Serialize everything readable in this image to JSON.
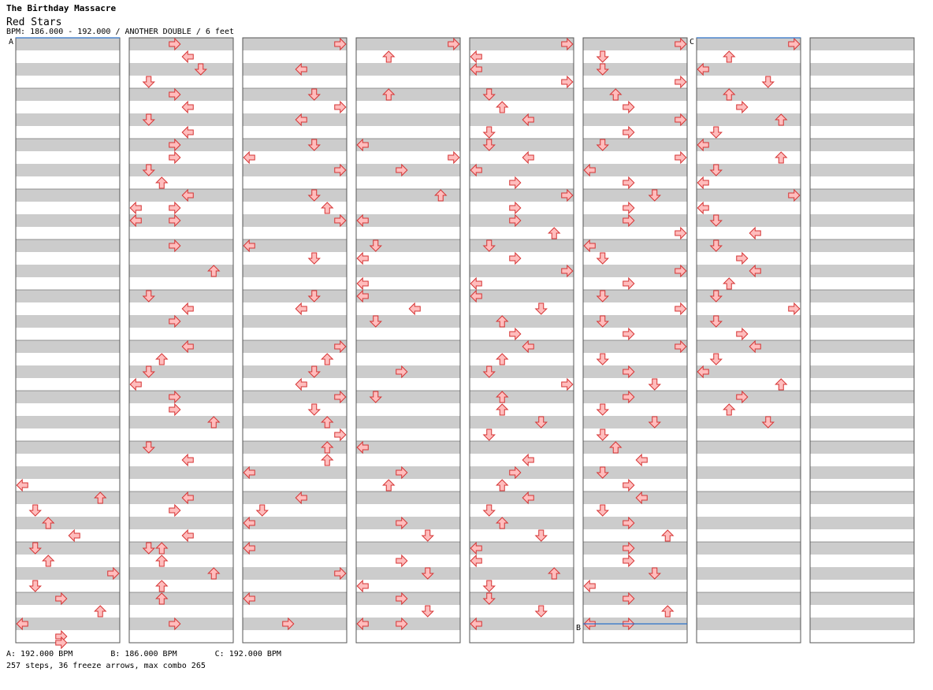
{
  "header": {
    "artist": "The Birthday Massacre",
    "title": "Red Stars",
    "bpm_line": "BPM: 186.000 - 192.000 / ANOTHER DOUBLE / 6 feet"
  },
  "bpm_markers": [
    {
      "label": "A",
      "bpm": "192.000 BPM",
      "column": 1,
      "beat": 0
    },
    {
      "label": "B",
      "bpm": "186.000 BPM",
      "column": 6,
      "beat": 46.5
    },
    {
      "label": "C",
      "bpm": "192.000 BPM",
      "column": 7,
      "beat": 0
    }
  ],
  "legend": [
    "A: 192.000 BPM",
    "B: 186.000 BPM",
    "C: 192.000 BPM"
  ],
  "stats": "257 steps, 36 freeze arrows, max combo 265",
  "colors": {
    "note": "#ffbdbd",
    "note_stroke": "#d63333",
    "blue": "#8fc8ff",
    "blue_stroke": "#2d72c8",
    "freeze": "#c9fcc9",
    "freeze_stroke": "#2e9a2e",
    "stripe": "#cccccc"
  },
  "chart_data": {
    "type": "table",
    "columns": 8,
    "beats_per_column": 48,
    "lanes": [
      "L1",
      "D1",
      "U1",
      "R1",
      "L2",
      "D2",
      "U2",
      "R2"
    ],
    "notes": [
      [
        1,
        35,
        "L"
      ],
      [
        1,
        36,
        "U"
      ],
      [
        1,
        37,
        "D"
      ],
      [
        1,
        38,
        "U"
      ],
      [
        1,
        39,
        "L"
      ],
      [
        1,
        40,
        "D"
      ],
      [
        1,
        41,
        "U"
      ],
      [
        1,
        42,
        "R"
      ],
      [
        1,
        43,
        "D"
      ],
      [
        1,
        44,
        "R"
      ],
      [
        1,
        45,
        "U"
      ],
      [
        1,
        46,
        "L"
      ],
      [
        1,
        47,
        "R"
      ],
      [
        1,
        47.5,
        "R"
      ],
      [
        1,
        48,
        "L"
      ],
      [
        2,
        0,
        "R1"
      ],
      [
        2,
        1,
        "L2"
      ],
      [
        2,
        2,
        "D2"
      ],
      [
        2,
        3,
        "D1"
      ],
      [
        2,
        4,
        "R1"
      ],
      [
        2,
        5,
        "L2"
      ],
      [
        2,
        6,
        "D1"
      ],
      [
        2,
        7,
        "L2"
      ],
      [
        2,
        8,
        "R"
      ],
      [
        2,
        9,
        "R1"
      ],
      [
        2,
        10,
        "D"
      ],
      [
        2,
        11,
        "U"
      ],
      [
        2,
        12,
        "L"
      ],
      [
        2,
        13,
        "L1"
      ],
      [
        2,
        14,
        "L"
      ],
      [
        2,
        13,
        "R1"
      ],
      [
        2,
        14,
        "R1"
      ],
      [
        2,
        16,
        "R1"
      ],
      [
        2,
        18,
        "U"
      ],
      [
        2,
        20,
        "D"
      ],
      [
        2,
        21,
        "L"
      ],
      [
        2,
        22,
        "R1"
      ],
      [
        2,
        24,
        "L"
      ],
      [
        2,
        25,
        "U"
      ],
      [
        2,
        26,
        "D"
      ],
      [
        2,
        27,
        "L1"
      ],
      [
        2,
        28,
        "R1"
      ],
      [
        2,
        29,
        "R1"
      ],
      [
        2,
        30,
        "U"
      ],
      [
        2,
        32,
        "D"
      ],
      [
        2,
        33,
        "L"
      ],
      [
        2,
        36,
        "L"
      ],
      [
        2,
        37,
        "R1"
      ],
      [
        2,
        39,
        "L"
      ],
      [
        2,
        40,
        "D"
      ],
      [
        2,
        40,
        "U"
      ],
      [
        2,
        41,
        "U"
      ],
      [
        2,
        42,
        "U"
      ],
      [
        2,
        43,
        "U"
      ],
      [
        2,
        44,
        "U"
      ],
      [
        2,
        46,
        "R1"
      ],
      [
        3,
        0,
        "R"
      ],
      [
        3,
        2,
        "L2"
      ],
      [
        3,
        4,
        "D2"
      ],
      [
        3,
        5,
        "R2"
      ],
      [
        3,
        6,
        "L2"
      ],
      [
        3,
        8,
        "D2"
      ],
      [
        3,
        9,
        "L1"
      ],
      [
        3,
        10,
        "R2"
      ],
      [
        3,
        12,
        "D2"
      ],
      [
        3,
        13,
        "U2"
      ],
      [
        3,
        14,
        "R2"
      ],
      [
        3,
        16,
        "L1"
      ],
      [
        3,
        17,
        "D2"
      ],
      [
        3,
        20,
        "D2"
      ],
      [
        3,
        21,
        "L2"
      ],
      [
        3,
        24,
        "R"
      ],
      [
        3,
        25,
        "U2"
      ],
      [
        3,
        26,
        "D2"
      ],
      [
        3,
        27,
        "L2"
      ],
      [
        3,
        28,
        "R2"
      ],
      [
        3,
        29,
        "D2"
      ],
      [
        3,
        30,
        "U2"
      ],
      [
        3,
        31,
        "R2"
      ],
      [
        3,
        32,
        "U2"
      ],
      [
        3,
        33,
        "U2"
      ],
      [
        3,
        34,
        "L"
      ],
      [
        3,
        36,
        "L"
      ],
      [
        3,
        37,
        "D1"
      ],
      [
        3,
        38,
        "L"
      ],
      [
        3,
        40,
        "L"
      ],
      [
        3,
        42,
        "R"
      ],
      [
        3,
        44,
        "L"
      ],
      [
        3,
        46,
        "R"
      ],
      [
        4,
        0,
        "R"
      ],
      [
        4,
        1,
        "U"
      ],
      [
        4,
        4,
        "U"
      ],
      [
        4,
        8,
        "L"
      ],
      [
        4,
        9,
        "R2"
      ],
      [
        4,
        10,
        "R"
      ],
      [
        4,
        12,
        "U"
      ],
      [
        4,
        14,
        "L1"
      ],
      [
        4,
        16,
        "D"
      ],
      [
        4,
        17,
        "L1"
      ],
      [
        4,
        19,
        "L"
      ],
      [
        4,
        20,
        "L"
      ],
      [
        4,
        21,
        "L"
      ],
      [
        4,
        22,
        "D"
      ],
      [
        4,
        26,
        "R"
      ],
      [
        4,
        28,
        "D"
      ],
      [
        4,
        32,
        "L"
      ],
      [
        4,
        34,
        "R1"
      ],
      [
        4,
        35,
        "U1"
      ],
      [
        4,
        38,
        "R"
      ],
      [
        4,
        39,
        "D"
      ],
      [
        4,
        41,
        "R"
      ],
      [
        4,
        42,
        "D"
      ],
      [
        4,
        43,
        "L"
      ],
      [
        4,
        44,
        "R"
      ],
      [
        4,
        45,
        "D"
      ],
      [
        4,
        46,
        "L"
      ],
      [
        4,
        46,
        "R"
      ],
      [
        5,
        0,
        "R"
      ],
      [
        5,
        1,
        "L"
      ],
      [
        5,
        2,
        "L"
      ],
      [
        5,
        3,
        "R"
      ],
      [
        5,
        4,
        "D"
      ],
      [
        5,
        5,
        "U"
      ],
      [
        5,
        6,
        "L"
      ],
      [
        5,
        7,
        "D"
      ],
      [
        5,
        8,
        "D"
      ],
      [
        5,
        9,
        "L"
      ],
      [
        5,
        10,
        "L"
      ],
      [
        5,
        11,
        "R"
      ],
      [
        5,
        12,
        "R"
      ],
      [
        5,
        13,
        "R"
      ],
      [
        5,
        14,
        "R"
      ],
      [
        5,
        15,
        "U"
      ],
      [
        5,
        16,
        "D"
      ],
      [
        5,
        17,
        "R"
      ],
      [
        5,
        18,
        "R"
      ],
      [
        5,
        19,
        "L"
      ],
      [
        5,
        20,
        "L"
      ],
      [
        5,
        21,
        "D"
      ],
      [
        5,
        22,
        "U"
      ],
      [
        5,
        23,
        "R"
      ],
      [
        5,
        24,
        "L"
      ],
      [
        5,
        25,
        "U"
      ],
      [
        5,
        26,
        "D"
      ],
      [
        5,
        27,
        "R"
      ],
      [
        5,
        28,
        "U"
      ],
      [
        5,
        29,
        "U"
      ],
      [
        5,
        30,
        "D"
      ],
      [
        5,
        31,
        "D"
      ],
      [
        5,
        33,
        "L"
      ],
      [
        5,
        34,
        "R"
      ],
      [
        5,
        35,
        "U"
      ],
      [
        5,
        36,
        "L"
      ],
      [
        5,
        37,
        "D"
      ],
      [
        5,
        38,
        "U"
      ],
      [
        5,
        39,
        "D"
      ],
      [
        5,
        40,
        "L"
      ],
      [
        5,
        41,
        "L"
      ],
      [
        5,
        42,
        "U"
      ],
      [
        5,
        43,
        "D"
      ],
      [
        5,
        44,
        "D"
      ],
      [
        5,
        45,
        "D"
      ],
      [
        5,
        46,
        "L"
      ],
      [
        6,
        0,
        "R"
      ],
      [
        6,
        1,
        "D"
      ],
      [
        6,
        2,
        "D"
      ],
      [
        6,
        3,
        "R"
      ],
      [
        6,
        4,
        "U"
      ],
      [
        6,
        5,
        "R"
      ],
      [
        6,
        6,
        "R"
      ],
      [
        6,
        7,
        "R"
      ],
      [
        6,
        8,
        "D"
      ],
      [
        6,
        9,
        "R"
      ],
      [
        6,
        10,
        "L"
      ],
      [
        6,
        11,
        "R"
      ],
      [
        6,
        12,
        "D"
      ],
      [
        6,
        13,
        "R"
      ],
      [
        6,
        14,
        "R"
      ],
      [
        6,
        15,
        "R"
      ],
      [
        6,
        16,
        "L"
      ],
      [
        6,
        17,
        "D"
      ],
      [
        6,
        18,
        "R"
      ],
      [
        6,
        19,
        "R"
      ],
      [
        6,
        20,
        "D"
      ],
      [
        6,
        21,
        "R"
      ],
      [
        6,
        22,
        "D"
      ],
      [
        6,
        23,
        "R"
      ],
      [
        6,
        24,
        "R"
      ],
      [
        6,
        25,
        "D"
      ],
      [
        6,
        26,
        "R"
      ],
      [
        6,
        27,
        "D"
      ],
      [
        6,
        28,
        "R"
      ],
      [
        6,
        29,
        "D"
      ],
      [
        6,
        30,
        "D"
      ],
      [
        6,
        31,
        "D"
      ],
      [
        6,
        32,
        "U"
      ],
      [
        6,
        33,
        "L"
      ],
      [
        6,
        34,
        "D"
      ],
      [
        6,
        35,
        "R"
      ],
      [
        6,
        36,
        "L"
      ],
      [
        6,
        37,
        "D"
      ],
      [
        6,
        38,
        "R"
      ],
      [
        6,
        39,
        "U"
      ],
      [
        6,
        40,
        "R"
      ],
      [
        6,
        41,
        "R"
      ],
      [
        6,
        42,
        "D"
      ],
      [
        6,
        43,
        "L"
      ],
      [
        6,
        44,
        "R"
      ],
      [
        6,
        45,
        "U"
      ],
      [
        6,
        46,
        "R"
      ],
      [
        6,
        46,
        "L"
      ],
      [
        7,
        0,
        "R"
      ],
      [
        7,
        1,
        "U"
      ],
      [
        7,
        2,
        "L"
      ],
      [
        7,
        3,
        "D"
      ],
      [
        7,
        4,
        "U"
      ],
      [
        7,
        5,
        "R"
      ],
      [
        7,
        6,
        "U"
      ],
      [
        7,
        7,
        "D"
      ],
      [
        7,
        8,
        "L"
      ],
      [
        7,
        9,
        "U"
      ],
      [
        7,
        10,
        "D"
      ],
      [
        7,
        11,
        "L"
      ],
      [
        7,
        12,
        "R"
      ],
      [
        7,
        13,
        "L"
      ],
      [
        7,
        14,
        "D"
      ],
      [
        7,
        15,
        "L"
      ],
      [
        7,
        16,
        "D"
      ],
      [
        7,
        17,
        "R"
      ],
      [
        7,
        18,
        "L"
      ],
      [
        7,
        19,
        "U"
      ],
      [
        7,
        20,
        "D"
      ],
      [
        7,
        21,
        "R"
      ],
      [
        7,
        22,
        "D"
      ],
      [
        7,
        23,
        "R"
      ],
      [
        7,
        24,
        "L"
      ],
      [
        7,
        25,
        "D"
      ],
      [
        7,
        26,
        "L"
      ],
      [
        7,
        27,
        "U"
      ],
      [
        7,
        28,
        "R"
      ],
      [
        7,
        29,
        "U"
      ],
      [
        7,
        30,
        "D"
      ]
    ],
    "freezes": []
  }
}
